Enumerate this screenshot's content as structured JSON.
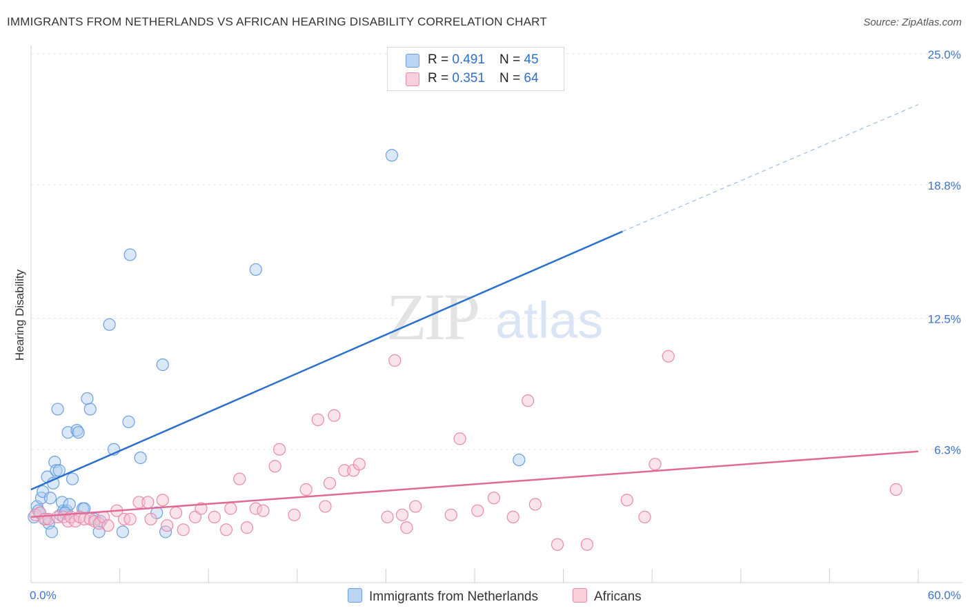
{
  "title": "IMMIGRANTS FROM NETHERLANDS VS AFRICAN HEARING DISABILITY CORRELATION CHART",
  "source": "Source: ZipAtlas.com",
  "watermark": {
    "zip": "ZIP",
    "atlas": "atlas"
  },
  "legend": {
    "r_label": "R = ",
    "n_label": "N = ",
    "entries": [
      {
        "r": "0.491",
        "n": "45"
      },
      {
        "r": "0.351",
        "n": "64"
      }
    ]
  },
  "colors": {
    "blue_fill": "#aecbf0",
    "blue_stroke": "#6a9fe0",
    "blue_line": "#2a6fcc",
    "pink_fill": "#f7c0d1",
    "pink_stroke": "#e88aa8",
    "pink_line": "#e06a95",
    "tick_label": "#3b74c9"
  },
  "chart_data": {
    "type": "scatter",
    "xlabel": "",
    "ylabel": "Hearing Disability",
    "xlim": [
      0,
      60
    ],
    "ylim": [
      0,
      25
    ],
    "x_tick_labels": [
      "0.0%",
      "60.0%"
    ],
    "y_ticks": [
      {
        "value": 6.3,
        "label": "6.3%"
      },
      {
        "value": 12.5,
        "label": "12.5%"
      },
      {
        "value": 18.8,
        "label": "18.8%"
      },
      {
        "value": 25.0,
        "label": "25.0%"
      }
    ],
    "grid": true,
    "legend_position": "top-center",
    "series": [
      {
        "name": "Immigrants from Netherlands",
        "color": "#6a9fe0",
        "points": [
          [
            0.2,
            3.1
          ],
          [
            0.4,
            3.6
          ],
          [
            0.5,
            3.4
          ],
          [
            0.7,
            4.0
          ],
          [
            0.8,
            4.3
          ],
          [
            1.0,
            3.0
          ],
          [
            1.1,
            5.0
          ],
          [
            1.2,
            2.8
          ],
          [
            1.3,
            4.0
          ],
          [
            1.4,
            2.4
          ],
          [
            1.5,
            4.7
          ],
          [
            1.6,
            5.7
          ],
          [
            1.7,
            5.3
          ],
          [
            1.8,
            8.2
          ],
          [
            1.9,
            5.3
          ],
          [
            2.0,
            3.2
          ],
          [
            2.1,
            3.8
          ],
          [
            2.2,
            3.4
          ],
          [
            2.4,
            3.4
          ],
          [
            2.5,
            7.1
          ],
          [
            2.6,
            3.7
          ],
          [
            2.8,
            4.9
          ],
          [
            3.1,
            7.2
          ],
          [
            3.2,
            7.1
          ],
          [
            3.5,
            3.5
          ],
          [
            3.8,
            8.7
          ],
          [
            4.0,
            8.2
          ],
          [
            4.3,
            3.0
          ],
          [
            4.6,
            2.4
          ],
          [
            4.7,
            2.9
          ],
          [
            5.3,
            12.2
          ],
          [
            5.6,
            6.3
          ],
          [
            6.2,
            2.4
          ],
          [
            6.6,
            7.6
          ],
          [
            6.7,
            15.5
          ],
          [
            7.4,
            5.9
          ],
          [
            8.5,
            3.3
          ],
          [
            8.9,
            10.3
          ],
          [
            9.1,
            2.4
          ],
          [
            15.2,
            14.8
          ],
          [
            24.4,
            20.2
          ],
          [
            33.0,
            5.8
          ],
          [
            0.6,
            3.3
          ],
          [
            2.3,
            3.3
          ],
          [
            3.6,
            3.5
          ]
        ]
      },
      {
        "name": "Africans",
        "color": "#e88aa8",
        "points": [
          [
            0.3,
            3.2
          ],
          [
            0.6,
            3.3
          ],
          [
            0.9,
            3.0
          ],
          [
            1.2,
            3.0
          ],
          [
            1.8,
            3.1
          ],
          [
            2.2,
            3.1
          ],
          [
            2.5,
            2.9
          ],
          [
            2.7,
            3.1
          ],
          [
            3.0,
            2.9
          ],
          [
            3.3,
            3.1
          ],
          [
            3.6,
            3.0
          ],
          [
            4.0,
            3.0
          ],
          [
            4.3,
            2.9
          ],
          [
            4.6,
            2.8
          ],
          [
            4.9,
            3.1
          ],
          [
            5.2,
            2.7
          ],
          [
            5.8,
            3.4
          ],
          [
            6.3,
            3.0
          ],
          [
            6.7,
            3.0
          ],
          [
            7.3,
            3.8
          ],
          [
            7.9,
            3.8
          ],
          [
            8.1,
            3.0
          ],
          [
            8.9,
            3.9
          ],
          [
            9.2,
            2.7
          ],
          [
            9.8,
            3.3
          ],
          [
            10.3,
            2.5
          ],
          [
            11.1,
            3.1
          ],
          [
            11.5,
            3.5
          ],
          [
            12.4,
            3.1
          ],
          [
            13.2,
            2.5
          ],
          [
            13.5,
            3.5
          ],
          [
            14.1,
            4.9
          ],
          [
            14.6,
            2.6
          ],
          [
            15.2,
            3.5
          ],
          [
            15.7,
            3.4
          ],
          [
            16.5,
            5.5
          ],
          [
            16.8,
            6.3
          ],
          [
            17.8,
            3.2
          ],
          [
            18.6,
            4.4
          ],
          [
            19.4,
            7.7
          ],
          [
            19.9,
            3.6
          ],
          [
            20.2,
            4.7
          ],
          [
            20.5,
            7.9
          ],
          [
            21.2,
            5.3
          ],
          [
            21.8,
            5.3
          ],
          [
            22.2,
            5.6
          ],
          [
            24.1,
            3.1
          ],
          [
            24.6,
            10.5
          ],
          [
            25.1,
            3.2
          ],
          [
            25.4,
            2.6
          ],
          [
            26.0,
            3.6
          ],
          [
            28.4,
            3.2
          ],
          [
            29.0,
            6.8
          ],
          [
            30.2,
            3.4
          ],
          [
            31.3,
            4.0
          ],
          [
            32.6,
            3.1
          ],
          [
            33.6,
            8.6
          ],
          [
            34.1,
            3.7
          ],
          [
            35.6,
            1.8
          ],
          [
            37.6,
            1.8
          ],
          [
            40.3,
            3.9
          ],
          [
            41.5,
            3.1
          ],
          [
            42.2,
            5.6
          ],
          [
            43.1,
            10.7
          ],
          [
            58.5,
            4.4
          ]
        ]
      }
    ],
    "trend_lines": [
      {
        "series": "Immigrants from Netherlands",
        "x": [
          0,
          40
        ],
        "y": [
          4.4,
          16.6
        ],
        "dashed_extension": {
          "x": [
            40,
            60
          ],
          "y": [
            16.6,
            22.6
          ]
        }
      },
      {
        "series": "Africans",
        "x": [
          0,
          60
        ],
        "y": [
          3.1,
          6.2
        ]
      }
    ]
  }
}
